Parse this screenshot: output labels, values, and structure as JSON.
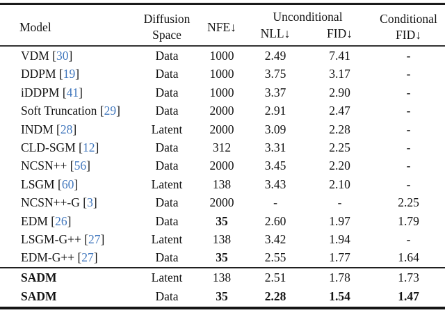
{
  "colors": {
    "citation_link": "#4177bd",
    "text": "#131313",
    "rule": "#1b1b1b"
  },
  "table": {
    "header": {
      "model": "Model",
      "diffusion_space_line1": "Diffusion",
      "diffusion_space_line2": "Space",
      "nfe": "NFE↓",
      "unconditional": "Unconditional",
      "nll": "NLL↓",
      "fid": "FID↓",
      "conditional_line1": "Conditional",
      "conditional_line2": "FID↓"
    },
    "rows": [
      {
        "model": "VDM",
        "cite": "30",
        "space": "Data",
        "nfe": "1000",
        "nll": "2.49",
        "fid": "7.41",
        "cfid": "-"
      },
      {
        "model": "DDPM",
        "cite": "19",
        "space": "Data",
        "nfe": "1000",
        "nll": "3.75",
        "fid": "3.17",
        "cfid": "-"
      },
      {
        "model": "iDDPM",
        "cite": "41",
        "space": "Data",
        "nfe": "1000",
        "nll": "3.37",
        "fid": "2.90",
        "cfid": "-"
      },
      {
        "model": "Soft Truncation",
        "cite": "29",
        "space": "Data",
        "nfe": "2000",
        "nll": "2.91",
        "fid": "2.47",
        "cfid": "-"
      },
      {
        "model": "INDM",
        "cite": "28",
        "space": "Latent",
        "nfe": "2000",
        "nll": "3.09",
        "fid": "2.28",
        "cfid": "-"
      },
      {
        "model": "CLD-SGM",
        "cite": "12",
        "space": "Data",
        "nfe": "312",
        "nll": "3.31",
        "fid": "2.25",
        "cfid": "-"
      },
      {
        "model": "NCSN++",
        "cite": "56",
        "space": "Data",
        "nfe": "2000",
        "nll": "3.45",
        "fid": "2.20",
        "cfid": "-"
      },
      {
        "model": "LSGM",
        "cite": "60",
        "space": "Latent",
        "nfe": "138",
        "nll": "3.43",
        "fid": "2.10",
        "cfid": "-"
      },
      {
        "model": "NCSN++-G",
        "cite": "3",
        "space": "Data",
        "nfe": "2000",
        "nll": "-",
        "fid": "-",
        "cfid": "2.25"
      },
      {
        "model": "EDM",
        "cite": "26",
        "space": "Data",
        "nfe": "35",
        "nfe_bold": true,
        "nll": "2.60",
        "fid": "1.97",
        "cfid": "1.79"
      },
      {
        "model": "LSGM-G++",
        "cite": "27",
        "space": "Latent",
        "nfe": "138",
        "nll": "3.42",
        "fid": "1.94",
        "cfid": "-"
      },
      {
        "model": "EDM-G++",
        "cite": "27",
        "space": "Data",
        "nfe": "35",
        "nfe_bold": true,
        "nll": "2.55",
        "fid": "1.77",
        "cfid": "1.64"
      },
      {
        "model": "SADM",
        "model_bold": true,
        "group_start": true,
        "space": "Latent",
        "nfe": "138",
        "nll": "2.51",
        "fid": "1.78",
        "cfid": "1.73"
      },
      {
        "model": "SADM",
        "model_bold": true,
        "space": "Data",
        "nfe": "35",
        "nfe_bold": true,
        "nll": "2.28",
        "nll_bold": true,
        "fid": "1.54",
        "fid_bold": true,
        "cfid": "1.47",
        "cfid_bold": true
      }
    ]
  }
}
